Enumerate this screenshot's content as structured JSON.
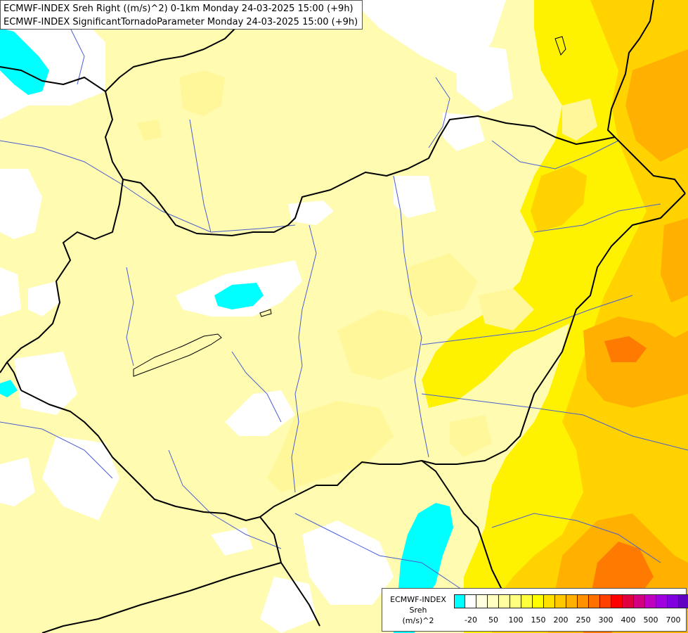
{
  "title": {
    "line1": "ECMWF-INDEX Sreh Right ((m/s)^2) 0-1km Monday 24-03-2025 15:00 (+9h)",
    "line2": "ECMWF-INDEX SignificantTornadoParameter Monday 24-03-2025 15:00 (+9h)"
  },
  "legend": {
    "source": "ECMWF-INDEX",
    "variable": "Sreh",
    "unit": "(m/s)^2",
    "colors": [
      "#00ffff",
      "#ffffff",
      "#ffffe0",
      "#ffffc0",
      "#ffffa0",
      "#ffff80",
      "#ffff40",
      "#ffff00",
      "#ffe000",
      "#ffc800",
      "#ffb000",
      "#ff9000",
      "#ff7000",
      "#ff4000",
      "#ff0000",
      "#e00040",
      "#d00080",
      "#c000c0",
      "#a000e0",
      "#8000e0",
      "#6000c0",
      "#3000a0",
      "#000080"
    ],
    "ticks": [
      "-20",
      "50",
      "100",
      "150",
      "200",
      "250",
      "300",
      "400",
      "500",
      "700"
    ]
  },
  "palette": {
    "pale_yellow": "#fffbb0",
    "light_yellow": "#fff799",
    "yellow": "#fff200",
    "gold": "#ffd200",
    "orange": "#ffb000",
    "deep_orange": "#ff7a00",
    "cyan": "#00ffff",
    "white": "#ffffff",
    "border": "#000000",
    "river": "#4a5fd0"
  }
}
